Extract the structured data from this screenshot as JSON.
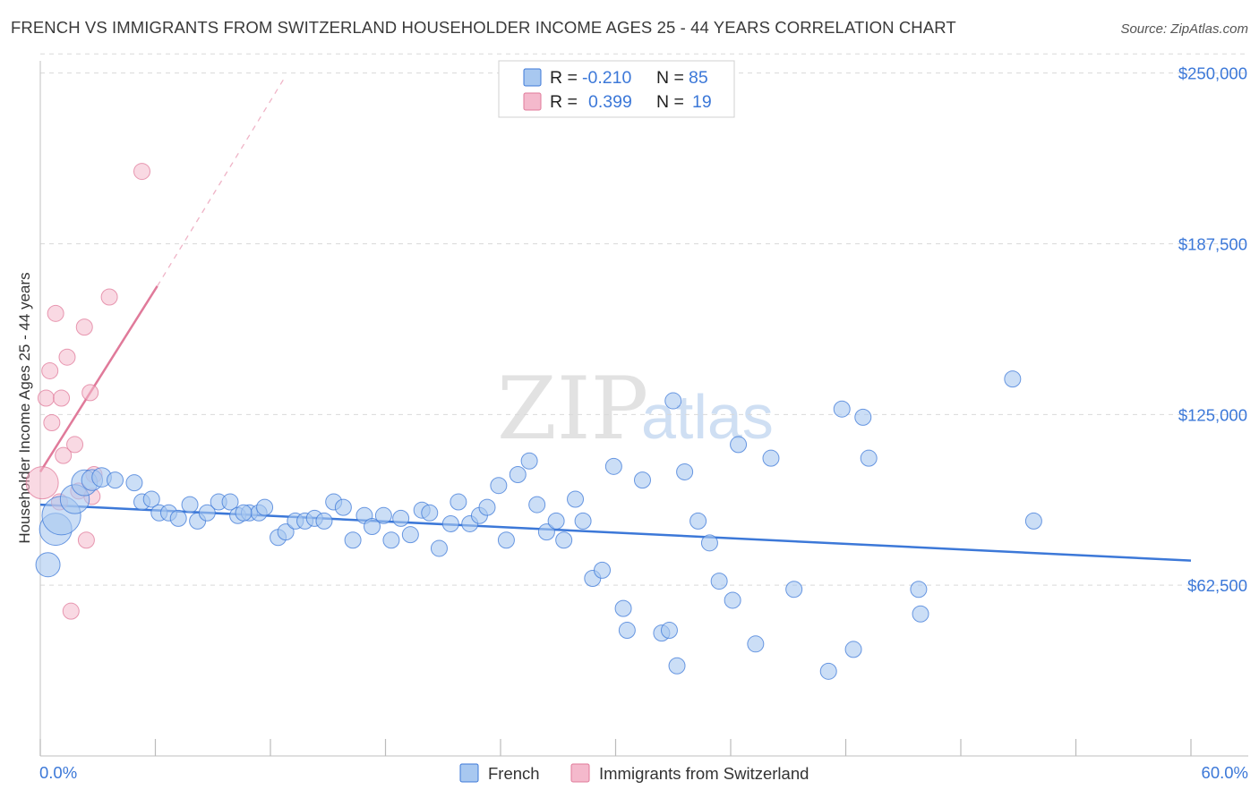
{
  "title": "FRENCH VS IMMIGRANTS FROM SWITZERLAND HOUSEHOLDER INCOME AGES 25 - 44 YEARS CORRELATION CHART",
  "source": "Source: ZipAtlas.com",
  "watermark": {
    "zip": "ZIP",
    "atlas": "atlas"
  },
  "colors": {
    "blue": "#3c78d8",
    "blue_fill": "#a8c8f0",
    "pink": "#e07a9a",
    "pink_fill": "#f4b9cc"
  },
  "chart_data": {
    "type": "scatter",
    "title": "FRENCH VS IMMIGRANTS FROM SWITZERLAND HOUSEHOLDER INCOME AGES 25 - 44 YEARS CORRELATION CHART",
    "xlabel": "",
    "ylabel": "Householder Income Ages 25 - 44 years",
    "xlim": [
      0,
      60
    ],
    "ylim": [
      0,
      262000
    ],
    "x_tick_labels": [
      "0.0%",
      "60.0%"
    ],
    "y_ticks": [
      62500,
      125000,
      187500,
      250000
    ],
    "y_tick_labels": [
      "$62,500",
      "$125,000",
      "$187,500",
      "$250,000"
    ],
    "grid": true,
    "legend": {
      "position": "top-center",
      "rows": [
        {
          "r_label": "R =",
          "r": "-0.210",
          "n_label": "N =",
          "n": "85"
        },
        {
          "r_label": "R =",
          "r": "0.399",
          "n_label": "N =",
          "n": "19"
        }
      ]
    },
    "series": [
      {
        "name": "French",
        "color": "#3c78d8",
        "trend": {
          "x": [
            0,
            60
          ],
          "y": [
            92000,
            71500
          ],
          "style": "solid"
        },
        "points": [
          [
            0.4,
            70000,
            1.5
          ],
          [
            0.8,
            83000,
            2
          ],
          [
            1.1,
            88000,
            2.4
          ],
          [
            1.8,
            94000,
            1.8
          ],
          [
            2.3,
            100000,
            1.6
          ],
          [
            2.7,
            101000,
            1.3
          ],
          [
            3.2,
            102000,
            1.2
          ],
          [
            3.9,
            101000,
            1
          ],
          [
            4.9,
            100000,
            1
          ],
          [
            5.3,
            93000,
            1
          ],
          [
            5.8,
            94000,
            1
          ],
          [
            6.2,
            89000,
            1
          ],
          [
            6.7,
            89000,
            1
          ],
          [
            7.2,
            87000,
            1
          ],
          [
            7.8,
            92000,
            1
          ],
          [
            8.2,
            86000,
            1
          ],
          [
            8.7,
            89000,
            1
          ],
          [
            9.3,
            93000,
            1
          ],
          [
            9.9,
            93000,
            1
          ],
          [
            10.3,
            88000,
            1
          ],
          [
            10.9,
            89000,
            1
          ],
          [
            11.4,
            89000,
            1
          ],
          [
            11.7,
            91000,
            1
          ],
          [
            12.4,
            80000,
            1
          ],
          [
            12.8,
            82000,
            1
          ],
          [
            13.3,
            86000,
            1
          ],
          [
            13.8,
            86000,
            1
          ],
          [
            14.3,
            87000,
            1
          ],
          [
            14.8,
            86000,
            1
          ],
          [
            15.3,
            93000,
            1
          ],
          [
            15.8,
            91000,
            1
          ],
          [
            16.3,
            79000,
            1
          ],
          [
            16.9,
            88000,
            1
          ],
          [
            17.3,
            84000,
            1
          ],
          [
            17.9,
            88000,
            1
          ],
          [
            18.3,
            79000,
            1
          ],
          [
            18.8,
            87000,
            1
          ],
          [
            19.3,
            81000,
            1
          ],
          [
            19.9,
            90000,
            1
          ],
          [
            20.3,
            89000,
            1
          ],
          [
            20.8,
            76000,
            1
          ],
          [
            21.4,
            85000,
            1
          ],
          [
            21.8,
            93000,
            1
          ],
          [
            22.4,
            85000,
            1
          ],
          [
            22.9,
            88000,
            1
          ],
          [
            23.3,
            91000,
            1
          ],
          [
            23.9,
            99000,
            1
          ],
          [
            24.3,
            79000,
            1
          ],
          [
            24.9,
            103000,
            1
          ],
          [
            25.5,
            108000,
            1
          ],
          [
            25.9,
            92000,
            1
          ],
          [
            26.4,
            82000,
            1
          ],
          [
            26.9,
            86000,
            1
          ],
          [
            27.3,
            79000,
            1
          ],
          [
            27.9,
            94000,
            1
          ],
          [
            28.3,
            86000,
            1
          ],
          [
            28.8,
            65000,
            1
          ],
          [
            29.3,
            68000,
            1
          ],
          [
            29.9,
            106000,
            1
          ],
          [
            30.4,
            54000,
            1
          ],
          [
            30.6,
            46000,
            1
          ],
          [
            31.4,
            101000,
            1
          ],
          [
            32.4,
            45000,
            1
          ],
          [
            32.8,
            46000,
            1
          ],
          [
            33.0,
            130000,
            1
          ],
          [
            33.2,
            33000,
            1
          ],
          [
            33.6,
            104000,
            1
          ],
          [
            34.3,
            86000,
            1
          ],
          [
            34.9,
            78000,
            1
          ],
          [
            35.4,
            64000,
            1
          ],
          [
            36.1,
            57000,
            1
          ],
          [
            36.4,
            114000,
            1
          ],
          [
            37.3,
            41000,
            1
          ],
          [
            38.1,
            109000,
            1
          ],
          [
            39.3,
            61000,
            1
          ],
          [
            41.1,
            31000,
            1
          ],
          [
            41.8,
            127000,
            1
          ],
          [
            42.4,
            39000,
            1
          ],
          [
            42.9,
            124000,
            1
          ],
          [
            43.2,
            109000,
            1
          ],
          [
            45.8,
            61000,
            1
          ],
          [
            45.9,
            52000,
            1
          ],
          [
            50.7,
            138000,
            1
          ],
          [
            51.8,
            86000,
            1
          ],
          [
            10.6,
            89000,
            1
          ]
        ]
      },
      {
        "name": "Immigrants from Switzerland",
        "color": "#e07a9a",
        "trend": {
          "x": [
            0,
            6.1
          ],
          "y": [
            104000,
            172000
          ],
          "style": "solid",
          "dashed_to": [
            12.8,
            249000
          ]
        },
        "points": [
          [
            0.1,
            100000,
            2
          ],
          [
            0.3,
            131000,
            1
          ],
          [
            0.5,
            141000,
            1
          ],
          [
            0.6,
            122000,
            1
          ],
          [
            0.8,
            162000,
            1
          ],
          [
            1.0,
            93000,
            1
          ],
          [
            1.1,
            131000,
            1
          ],
          [
            1.2,
            110000,
            1
          ],
          [
            1.4,
            146000,
            1
          ],
          [
            1.6,
            53000,
            1
          ],
          [
            1.8,
            114000,
            1
          ],
          [
            2.0,
            97000,
            1
          ],
          [
            2.3,
            157000,
            1
          ],
          [
            2.4,
            79000,
            1
          ],
          [
            2.6,
            133000,
            1
          ],
          [
            2.7,
            95000,
            1
          ],
          [
            2.8,
            103000,
            1
          ],
          [
            3.6,
            168000,
            1
          ],
          [
            5.3,
            214000,
            1
          ]
        ]
      }
    ]
  },
  "bottom_legend": [
    "French",
    "Immigrants from Switzerland"
  ]
}
